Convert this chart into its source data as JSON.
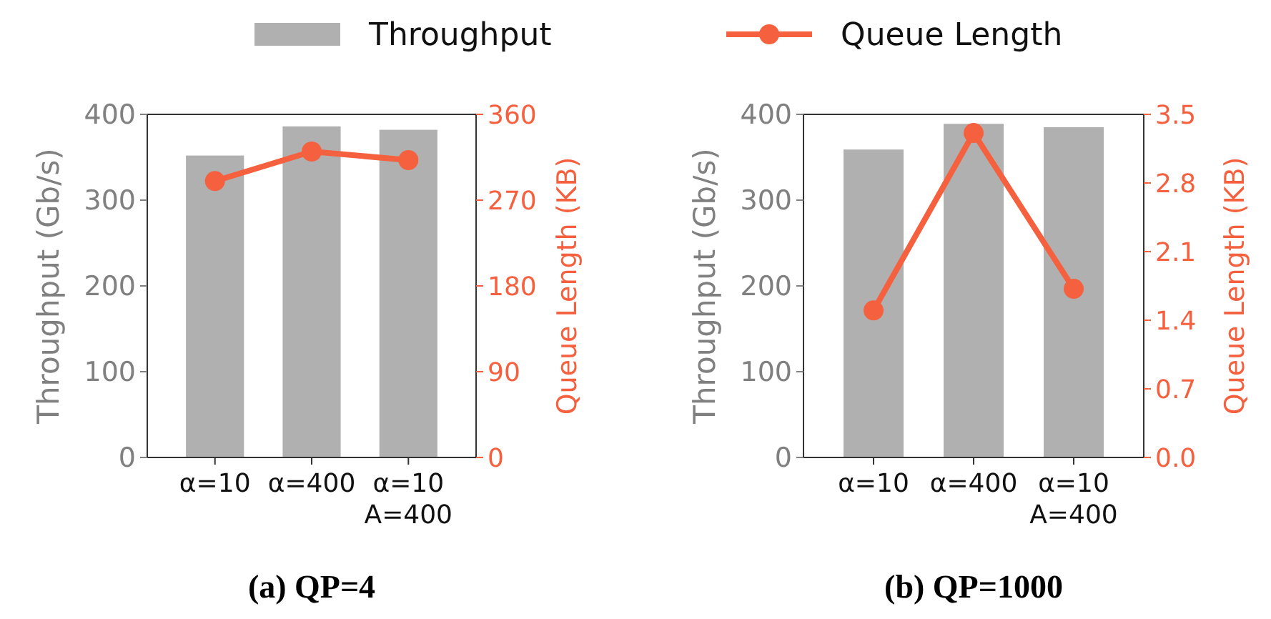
{
  "chart_data": [
    {
      "type": "bar",
      "title": "(a) QP=4",
      "categories": [
        "α=10",
        "α=400",
        "α=10\nA=400"
      ],
      "ylabel": "Throughput (Gb/s)",
      "y2label": "Queue Length (KB)",
      "ylim": [
        0,
        400
      ],
      "yticks": [
        0,
        100,
        200,
        300,
        400
      ],
      "y2lim": [
        0,
        360
      ],
      "y2ticks": [
        0,
        90,
        180,
        270,
        360
      ],
      "legend": "top",
      "marker": "circle",
      "series": [
        {
          "name": "Throughput",
          "color": "#b0b0b0",
          "values": [
            352,
            386,
            382
          ]
        },
        {
          "name": "Queue Length",
          "type": "line",
          "axis": "y2",
          "color": "#f5603f",
          "values": [
            290,
            321,
            312
          ]
        }
      ]
    },
    {
      "type": "bar",
      "title": "(b) QP=1000",
      "categories": [
        "α=10",
        "α=400",
        "α=10\nA=400"
      ],
      "ylabel": "Throughput (Gb/s)",
      "y2label": "Queue Length (KB)",
      "ylim": [
        0,
        400
      ],
      "yticks": [
        0,
        100,
        200,
        300,
        400
      ],
      "y2lim": [
        0,
        3.5
      ],
      "y2ticks": [
        {
          "value": 0,
          "label": "0.0"
        },
        0.7,
        1.4,
        2.1,
        2.8,
        3.5
      ],
      "marker": "circle",
      "series": [
        {
          "color": "#b0b0b0",
          "values": [
            359,
            389,
            385
          ]
        },
        {
          "type": "line",
          "axis": "y2",
          "color": "#f5603f",
          "values": [
            1.5,
            3.31,
            1.72
          ]
        }
      ]
    }
  ]
}
